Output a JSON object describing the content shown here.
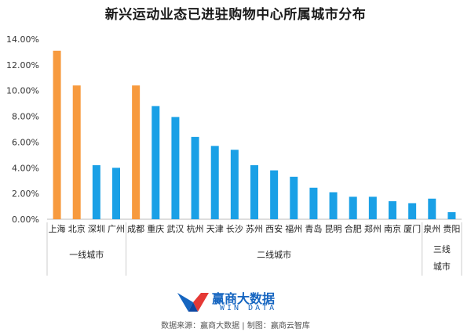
{
  "title": "新兴运动业态已进驻购物中心所属城市分布",
  "source": "数据来源：赢商大数据 | 制图：赢商云智库",
  "logo": {
    "name": "赢商大数据",
    "sub": "WIN DATA"
  },
  "chart_data": {
    "type": "bar",
    "title": "新兴运动业态已进驻购物中心所属城市分布",
    "categories": [
      "上海",
      "北京",
      "深圳",
      "广州",
      "成都",
      "重庆",
      "武汉",
      "杭州",
      "天津",
      "长沙",
      "苏州",
      "西安",
      "福州",
      "青岛",
      "昆明",
      "合肥",
      "郑州",
      "南京",
      "厦门",
      "泉州",
      "贵阳"
    ],
    "values": [
      13.1,
      10.4,
      4.2,
      4.0,
      10.4,
      8.8,
      7.95,
      6.4,
      5.7,
      5.4,
      4.2,
      3.8,
      3.3,
      2.45,
      2.1,
      1.75,
      1.75,
      1.4,
      1.25,
      1.6,
      0.55
    ],
    "tier": [
      "一线城市",
      "一线城市",
      "一线城市",
      "一线城市",
      "二线城市",
      "二线城市",
      "二线城市",
      "二线城市",
      "二线城市",
      "二线城市",
      "二线城市",
      "二线城市",
      "二线城市",
      "二线城市",
      "二线城市",
      "二线城市",
      "二线城市",
      "二线城市",
      "二线城市",
      "三线城市",
      "三线城市"
    ],
    "highlight_colors": {
      "orange": "#f79a3e",
      "blue": "#1aa0e6"
    },
    "bar_color_group": [
      "orange",
      "orange",
      "blue",
      "blue",
      "orange",
      "blue",
      "blue",
      "blue",
      "blue",
      "blue",
      "blue",
      "blue",
      "blue",
      "blue",
      "blue",
      "blue",
      "blue",
      "blue",
      "blue",
      "blue",
      "blue"
    ],
    "yticks": [
      "0.00%",
      "2.00%",
      "4.00%",
      "6.00%",
      "8.00%",
      "10.00%",
      "12.00%",
      "14.00%"
    ],
    "ylim": [
      0,
      14
    ],
    "groups": [
      {
        "label": "一线城市",
        "start": 0,
        "end": 3
      },
      {
        "label": "二线城市",
        "start": 4,
        "end": 18
      },
      {
        "label": "三线城市",
        "start": 19,
        "end": 20
      }
    ],
    "grid": false,
    "legend": "none"
  }
}
